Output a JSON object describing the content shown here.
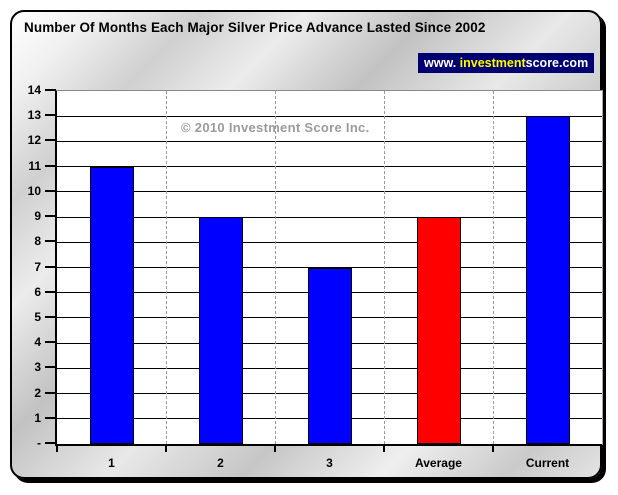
{
  "title": "Number Of Months Each Major Silver Price Advance Lasted Since 2002",
  "badge": {
    "prefix": "www. ",
    "highlight": "investment",
    "suffix": "score.com",
    "bg_color": "#000070",
    "highlight_color": "#ffff00",
    "text_color": "#ffffff"
  },
  "watermark": "© 2010 Investment Score Inc.",
  "colors": {
    "bar_blue": "#0000ff",
    "bar_red": "#ff0000",
    "gridline": "#000000",
    "category_separator": "#999999",
    "plot_background": "#ffffff"
  },
  "chart_data": {
    "type": "bar",
    "title": "Number Of Months Each Major Silver Price Advance Lasted Since 2002",
    "categories": [
      "1",
      "2",
      "3",
      "Average",
      "Current"
    ],
    "values": [
      11,
      9,
      7,
      9,
      13
    ],
    "bar_colors": [
      "#0000ff",
      "#0000ff",
      "#0000ff",
      "#ff0000",
      "#0000ff"
    ],
    "xlabel": "",
    "ylabel": "",
    "ylim": [
      0,
      14
    ],
    "ytick_step": 1,
    "ytick_labels": [
      "-",
      "1",
      "2",
      "3",
      "4",
      "5",
      "6",
      "7",
      "8",
      "9",
      "10",
      "11",
      "12",
      "13",
      "14"
    ],
    "grid": "solid horizontal line at every integer; dashed vertical separators between categories",
    "legend": false,
    "annotations": [
      "© 2010 Investment Score Inc."
    ]
  }
}
